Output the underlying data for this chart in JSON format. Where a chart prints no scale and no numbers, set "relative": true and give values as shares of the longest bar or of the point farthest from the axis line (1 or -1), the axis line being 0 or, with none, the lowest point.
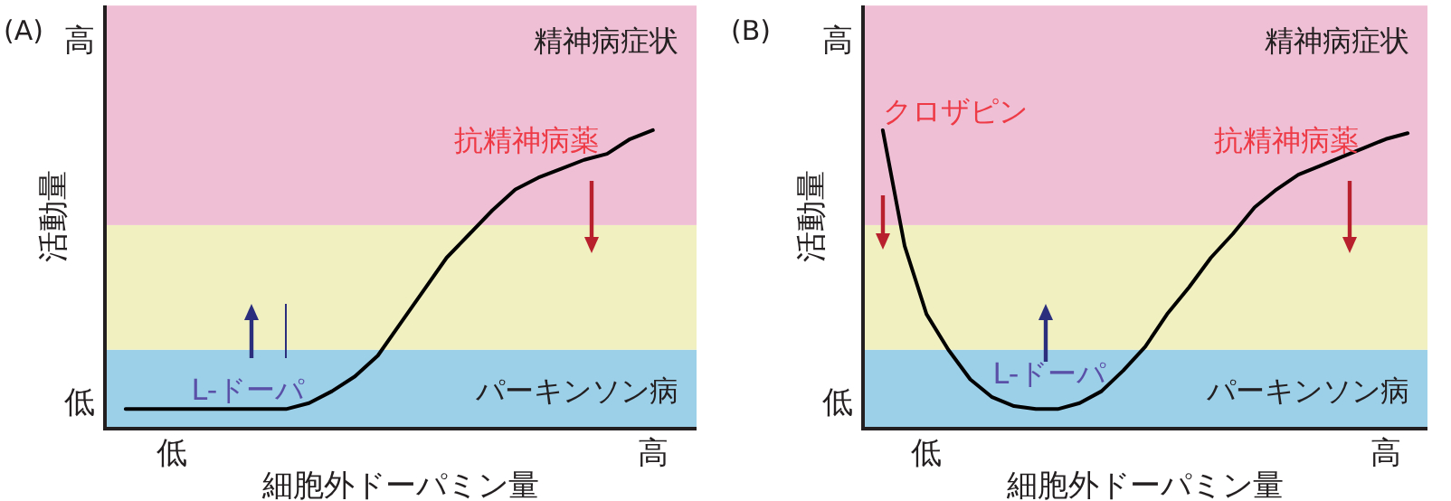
{
  "chart_data": [
    {
      "type": "line",
      "relative": true,
      "title": "(A)",
      "xlabel": "細胞外ドーパミン量",
      "ylabel": "活動量",
      "categories": [
        null,
        null,
        "低",
        null,
        null,
        null,
        null,
        null,
        null,
        null,
        null,
        null,
        null,
        null,
        null,
        null,
        null,
        null,
        null,
        null,
        null,
        null,
        null,
        "高",
        null
      ],
      "series": [
        {
          "color": "#000000",
          "values": [
            0.06,
            0.06,
            0.06,
            0.06,
            0.06,
            0.06,
            0.06,
            0.06,
            0.08,
            0.12,
            0.17,
            0.24,
            0.35,
            0.46,
            0.57,
            0.65,
            0.73,
            0.8,
            0.84,
            0.87,
            0.9,
            0.92,
            0.97,
            1,
            null
          ]
        }
      ],
      "bands": [
        {
          "axis": "y",
          "from": 0,
          "to": 0.26,
          "label": "パーキンソン病",
          "color": "#9ccfe8"
        },
        {
          "axis": "y",
          "from": 0.26,
          "to": 0.68,
          "color": "#f0f0c0"
        },
        {
          "axis": "y",
          "from": 0.68,
          "to": 1.42,
          "label": "精神病症状",
          "color": "#efc0d5"
        }
      ],
      "annotations": [
        "高",
        "低",
        "抗精神病薬",
        "L-ドーパ"
      ]
    },
    {
      "type": "line",
      "relative": true,
      "title": "(B)",
      "xlabel": "細胞外ドーパミン量",
      "ylabel": "活動量",
      "categories": [
        null,
        null,
        "低",
        null,
        null,
        null,
        null,
        null,
        null,
        null,
        null,
        null,
        null,
        null,
        null,
        null,
        null,
        null,
        null,
        null,
        null,
        null,
        null,
        "高",
        null
      ],
      "series": [
        {
          "color": "#000000",
          "values": [
            1,
            0.61,
            0.38,
            0.26,
            0.16,
            0.1,
            0.07,
            0.06,
            0.06,
            0.08,
            0.12,
            0.19,
            0.27,
            0.38,
            0.47,
            0.57,
            0.65,
            0.74,
            0.8,
            0.85,
            0.88,
            0.91,
            0.94,
            0.97,
            0.99
          ]
        }
      ],
      "bands": [
        {
          "axis": "y",
          "from": 0,
          "to": 0.26,
          "label": "パーキンソン病",
          "color": "#9ccfe8"
        },
        {
          "axis": "y",
          "from": 0.26,
          "to": 0.68,
          "color": "#f0f0c0"
        },
        {
          "axis": "y",
          "from": 0.68,
          "to": 1.42,
          "label": "精神病症状",
          "color": "#efc0d5"
        }
      ],
      "annotations": [
        "高",
        "低",
        "クロザピン",
        "抗精神病薬",
        "L-ドーパ"
      ]
    }
  ]
}
